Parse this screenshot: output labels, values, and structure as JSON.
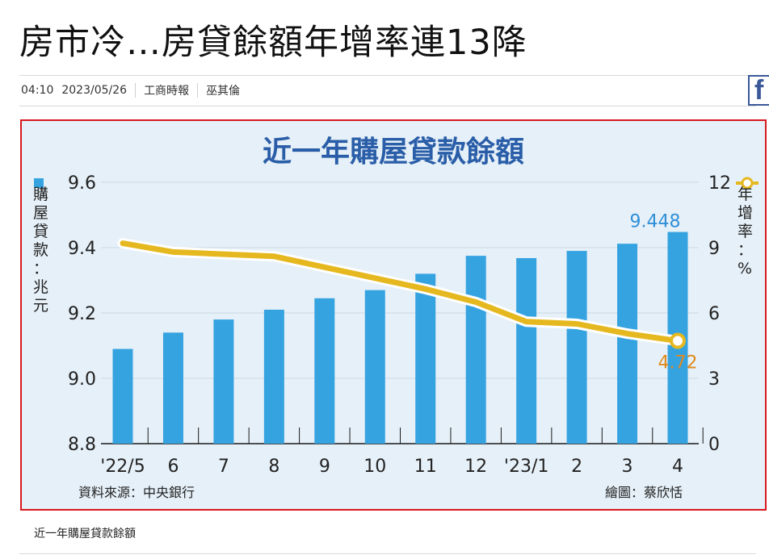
{
  "article": {
    "headline": "房市冷…房貸餘額年增率連13降",
    "time": "04:10",
    "date": "2023/05/26",
    "source": "工商時報",
    "author": "巫其倫",
    "caption": "近一年購屋貸款餘額"
  },
  "share": {
    "facebook_letter": "f",
    "brand_color": "#3b5998"
  },
  "chart_data": {
    "type": "bar",
    "title": "近一年購屋貸款餘額",
    "categories": [
      "'22/5",
      "6",
      "7",
      "8",
      "9",
      "10",
      "11",
      "12",
      "'23/1",
      "2",
      "3",
      "4"
    ],
    "series": [
      {
        "name": "購屋貸款",
        "type": "bar",
        "axis": "left",
        "color": "#36a3e1",
        "values": [
          9.09,
          9.14,
          9.18,
          9.21,
          9.245,
          9.27,
          9.32,
          9.375,
          9.368,
          9.39,
          9.412,
          9.448
        ]
      },
      {
        "name": "年增率",
        "type": "line",
        "axis": "right",
        "color": "#e6b820",
        "values": [
          9.2,
          8.8,
          8.7,
          8.6,
          8.1,
          7.6,
          7.1,
          6.5,
          5.6,
          5.5,
          5.05,
          4.72
        ]
      }
    ],
    "left_axis": {
      "label": "購屋貸款：兆元",
      "min": 8.8,
      "max": 9.6,
      "ticks": [
        "8.8",
        "9.0",
        "9.2",
        "9.4",
        "9.6"
      ]
    },
    "right_axis": {
      "label": "年增率：%",
      "min": 0,
      "max": 12,
      "ticks": [
        "0",
        "3",
        "6",
        "9",
        "12"
      ]
    },
    "annotations": {
      "last_bar_value": "9.448",
      "last_line_value": "4.72"
    },
    "source_note": "資料來源：中央銀行",
    "credit_note": "繪圖：蔡欣恬",
    "colors": {
      "background": "#e6f0f8",
      "title": "#2a5ea8",
      "bar_label": "#2f8fd8",
      "line_label": "#e08a1e",
      "frame_border": "#d71920"
    }
  }
}
